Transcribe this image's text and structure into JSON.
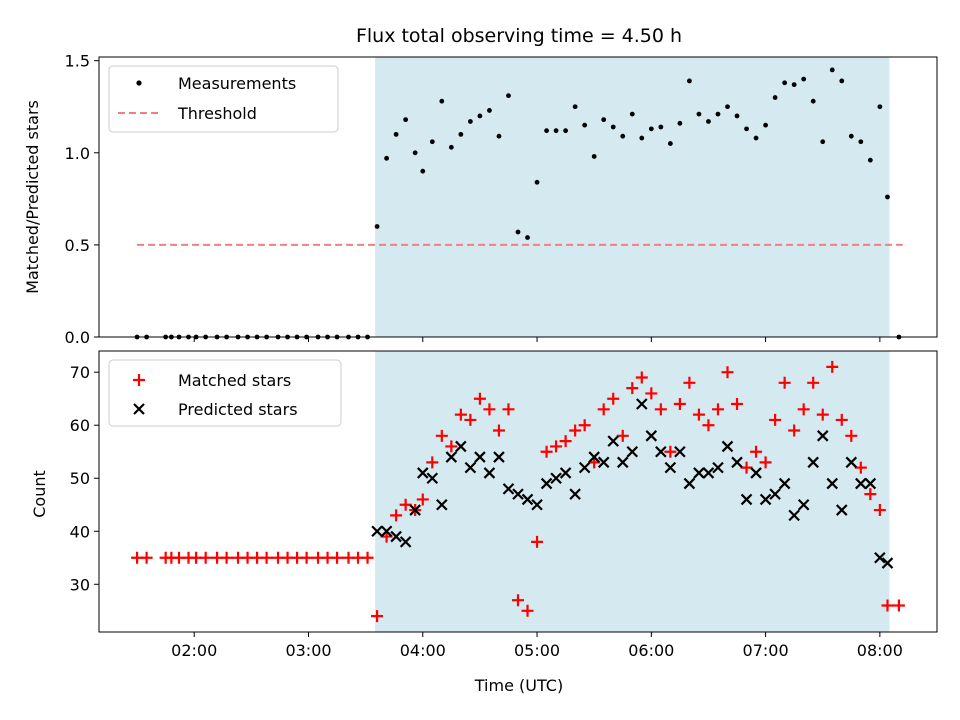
{
  "chart_data": [
    {
      "type": "scatter",
      "title": "Flux total observing time = 4.50 h",
      "xlabel": "",
      "ylabel": "Matched/Predicted stars",
      "ylim": [
        0,
        1.52
      ],
      "xlim": [
        "01:10",
        "08:30"
      ],
      "yticks": [
        "0.0",
        "0.5",
        "1.0",
        "1.5"
      ],
      "shaded_region": {
        "start": "03:35",
        "end": "08:05",
        "color": "#d4e9f0"
      },
      "legend": {
        "position": "top-left",
        "entries": [
          "Measurements",
          "Threshold"
        ]
      },
      "series": [
        {
          "name": "Measurements",
          "color": "#000000",
          "marker": "dot",
          "points": [
            [
              "01:30",
              0
            ],
            [
              "01:35",
              0
            ],
            [
              "01:45",
              0
            ],
            [
              "01:48",
              0
            ],
            [
              "01:52",
              0
            ],
            [
              "01:57",
              0
            ],
            [
              "02:01",
              0
            ],
            [
              "02:06",
              0
            ],
            [
              "02:12",
              0
            ],
            [
              "02:17",
              0
            ],
            [
              "02:23",
              0
            ],
            [
              "02:28",
              0
            ],
            [
              "02:33",
              0
            ],
            [
              "02:38",
              0
            ],
            [
              "02:44",
              0
            ],
            [
              "02:49",
              0
            ],
            [
              "02:54",
              0
            ],
            [
              "02:59",
              0
            ],
            [
              "03:05",
              0
            ],
            [
              "03:10",
              0
            ],
            [
              "03:15",
              0
            ],
            [
              "03:21",
              0
            ],
            [
              "03:26",
              0
            ],
            [
              "03:31",
              0
            ],
            [
              "03:36",
              0.6
            ],
            [
              "03:41",
              0.97
            ],
            [
              "03:46",
              1.1
            ],
            [
              "03:51",
              1.18
            ],
            [
              "03:56",
              1.0
            ],
            [
              "04:00",
              0.9
            ],
            [
              "04:05",
              1.06
            ],
            [
              "04:10",
              1.28
            ],
            [
              "04:15",
              1.03
            ],
            [
              "04:20",
              1.1
            ],
            [
              "04:25",
              1.17
            ],
            [
              "04:30",
              1.2
            ],
            [
              "04:35",
              1.23
            ],
            [
              "04:40",
              1.09
            ],
            [
              "04:45",
              1.31
            ],
            [
              "04:50",
              0.57
            ],
            [
              "04:55",
              0.54
            ],
            [
              "05:00",
              0.84
            ],
            [
              "05:05",
              1.12
            ],
            [
              "05:10",
              1.12
            ],
            [
              "05:15",
              1.12
            ],
            [
              "05:20",
              1.25
            ],
            [
              "05:25",
              1.15
            ],
            [
              "05:30",
              0.98
            ],
            [
              "05:35",
              1.18
            ],
            [
              "05:40",
              1.14
            ],
            [
              "05:45",
              1.09
            ],
            [
              "05:50",
              1.21
            ],
            [
              "05:55",
              1.08
            ],
            [
              "06:00",
              1.13
            ],
            [
              "06:05",
              1.14
            ],
            [
              "06:10",
              1.05
            ],
            [
              "06:15",
              1.16
            ],
            [
              "06:20",
              1.39
            ],
            [
              "06:25",
              1.21
            ],
            [
              "06:30",
              1.17
            ],
            [
              "06:35",
              1.21
            ],
            [
              "06:40",
              1.25
            ],
            [
              "06:45",
              1.2
            ],
            [
              "06:50",
              1.13
            ],
            [
              "06:55",
              1.08
            ],
            [
              "07:00",
              1.15
            ],
            [
              "07:05",
              1.3
            ],
            [
              "07:10",
              1.38
            ],
            [
              "07:15",
              1.37
            ],
            [
              "07:20",
              1.4
            ],
            [
              "07:25",
              1.28
            ],
            [
              "07:30",
              1.06
            ],
            [
              "07:35",
              1.45
            ],
            [
              "07:40",
              1.39
            ],
            [
              "07:45",
              1.09
            ],
            [
              "07:50",
              1.06
            ],
            [
              "07:55",
              0.96
            ],
            [
              "08:00",
              1.25
            ],
            [
              "08:04",
              0.76
            ],
            [
              "08:10",
              0
            ]
          ]
        },
        {
          "name": "Threshold",
          "color": "#f08080",
          "style": "dashed",
          "points": [
            [
              "01:30",
              0.5
            ],
            [
              "08:12",
              0.5
            ]
          ]
        }
      ]
    },
    {
      "type": "scatter",
      "title": "",
      "xlabel": "Time (UTC)",
      "ylabel": "Count",
      "ylim": [
        21,
        74
      ],
      "xlim": [
        "01:10",
        "08:30"
      ],
      "yticks": [
        "30",
        "40",
        "50",
        "60",
        "70"
      ],
      "xticks": [
        "02:00",
        "03:00",
        "04:00",
        "05:00",
        "06:00",
        "07:00",
        "08:00"
      ],
      "shaded_region": {
        "start": "03:35",
        "end": "08:05",
        "color": "#d4e9f0"
      },
      "legend": {
        "position": "top-left",
        "entries": [
          "Matched stars",
          "Predicted stars"
        ]
      },
      "series": [
        {
          "name": "Matched stars",
          "color": "#ff0000",
          "marker": "plus",
          "points": [
            [
              "01:30",
              35
            ],
            [
              "01:35",
              35
            ],
            [
              "01:45",
              35
            ],
            [
              "01:48",
              35
            ],
            [
              "01:52",
              35
            ],
            [
              "01:57",
              35
            ],
            [
              "02:01",
              35
            ],
            [
              "02:06",
              35
            ],
            [
              "02:12",
              35
            ],
            [
              "02:17",
              35
            ],
            [
              "02:23",
              35
            ],
            [
              "02:28",
              35
            ],
            [
              "02:33",
              35
            ],
            [
              "02:38",
              35
            ],
            [
              "02:44",
              35
            ],
            [
              "02:49",
              35
            ],
            [
              "02:54",
              35
            ],
            [
              "02:59",
              35
            ],
            [
              "03:05",
              35
            ],
            [
              "03:10",
              35
            ],
            [
              "03:15",
              35
            ],
            [
              "03:21",
              35
            ],
            [
              "03:26",
              35
            ],
            [
              "03:31",
              35
            ],
            [
              "03:36",
              24
            ],
            [
              "03:41",
              39
            ],
            [
              "03:46",
              43
            ],
            [
              "03:51",
              45
            ],
            [
              "03:56",
              44
            ],
            [
              "04:00",
              46
            ],
            [
              "04:05",
              53
            ],
            [
              "04:10",
              58
            ],
            [
              "04:15",
              56
            ],
            [
              "04:20",
              62
            ],
            [
              "04:25",
              61
            ],
            [
              "04:30",
              65
            ],
            [
              "04:35",
              63
            ],
            [
              "04:40",
              59
            ],
            [
              "04:45",
              63
            ],
            [
              "04:50",
              27
            ],
            [
              "04:55",
              25
            ],
            [
              "05:00",
              38
            ],
            [
              "05:05",
              55
            ],
            [
              "05:10",
              56
            ],
            [
              "05:15",
              57
            ],
            [
              "05:20",
              59
            ],
            [
              "05:25",
              60
            ],
            [
              "05:30",
              53
            ],
            [
              "05:35",
              63
            ],
            [
              "05:40",
              65
            ],
            [
              "05:45",
              58
            ],
            [
              "05:50",
              67
            ],
            [
              "05:55",
              69
            ],
            [
              "06:00",
              66
            ],
            [
              "06:05",
              63
            ],
            [
              "06:10",
              55
            ],
            [
              "06:15",
              64
            ],
            [
              "06:20",
              68
            ],
            [
              "06:25",
              62
            ],
            [
              "06:30",
              60
            ],
            [
              "06:35",
              63
            ],
            [
              "06:40",
              70
            ],
            [
              "06:45",
              64
            ],
            [
              "06:50",
              52
            ],
            [
              "06:55",
              55
            ],
            [
              "07:00",
              53
            ],
            [
              "07:05",
              61
            ],
            [
              "07:10",
              68
            ],
            [
              "07:15",
              59
            ],
            [
              "07:20",
              63
            ],
            [
              "07:25",
              68
            ],
            [
              "07:30",
              62
            ],
            [
              "07:35",
              71
            ],
            [
              "07:40",
              61
            ],
            [
              "07:45",
              58
            ],
            [
              "07:50",
              52
            ],
            [
              "07:55",
              47
            ],
            [
              "08:00",
              44
            ],
            [
              "08:04",
              26
            ],
            [
              "08:10",
              26
            ]
          ]
        },
        {
          "name": "Predicted stars",
          "color": "#000000",
          "marker": "x",
          "points": [
            [
              "03:36",
              40
            ],
            [
              "03:41",
              40
            ],
            [
              "03:46",
              39
            ],
            [
              "03:51",
              38
            ],
            [
              "03:56",
              44
            ],
            [
              "04:00",
              51
            ],
            [
              "04:05",
              50
            ],
            [
              "04:10",
              45
            ],
            [
              "04:15",
              54
            ],
            [
              "04:20",
              56
            ],
            [
              "04:25",
              52
            ],
            [
              "04:30",
              54
            ],
            [
              "04:35",
              51
            ],
            [
              "04:40",
              54
            ],
            [
              "04:45",
              48
            ],
            [
              "04:50",
              47
            ],
            [
              "04:55",
              46
            ],
            [
              "05:00",
              45
            ],
            [
              "05:05",
              49
            ],
            [
              "05:10",
              50
            ],
            [
              "05:15",
              51
            ],
            [
              "05:20",
              47
            ],
            [
              "05:25",
              52
            ],
            [
              "05:30",
              54
            ],
            [
              "05:35",
              53
            ],
            [
              "05:40",
              57
            ],
            [
              "05:45",
              53
            ],
            [
              "05:50",
              55
            ],
            [
              "05:55",
              64
            ],
            [
              "06:00",
              58
            ],
            [
              "06:05",
              55
            ],
            [
              "06:10",
              52
            ],
            [
              "06:15",
              55
            ],
            [
              "06:20",
              49
            ],
            [
              "06:25",
              51
            ],
            [
              "06:30",
              51
            ],
            [
              "06:35",
              52
            ],
            [
              "06:40",
              56
            ],
            [
              "06:45",
              53
            ],
            [
              "06:50",
              46
            ],
            [
              "06:55",
              51
            ],
            [
              "07:00",
              46
            ],
            [
              "07:05",
              47
            ],
            [
              "07:10",
              49
            ],
            [
              "07:15",
              43
            ],
            [
              "07:20",
              45
            ],
            [
              "07:25",
              53
            ],
            [
              "07:30",
              58
            ],
            [
              "07:35",
              49
            ],
            [
              "07:40",
              44
            ],
            [
              "07:45",
              53
            ],
            [
              "07:50",
              49
            ],
            [
              "07:55",
              49
            ],
            [
              "08:00",
              35
            ],
            [
              "08:04",
              34
            ]
          ]
        }
      ]
    }
  ]
}
